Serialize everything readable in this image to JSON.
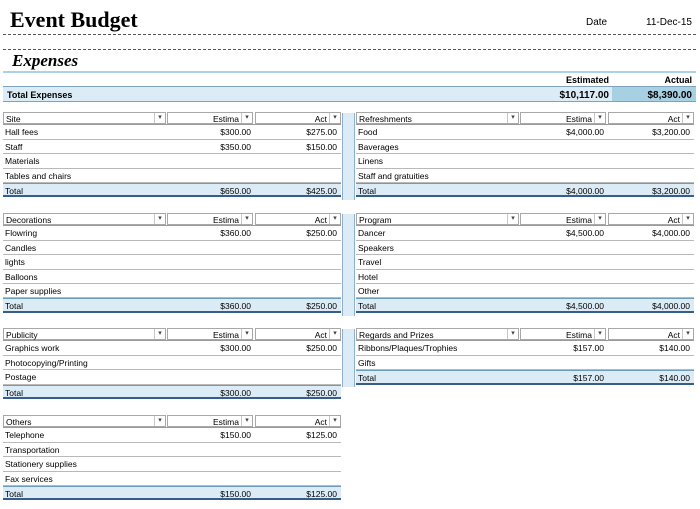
{
  "header": {
    "title": "Event Budget",
    "date_label": "Date",
    "date_value": "11-Dec-15",
    "subtitle": "Expenses"
  },
  "summary": {
    "estimated_header": "Estimated",
    "actual_header": "Actual",
    "label": "Total Expenses",
    "estimated": "$10,117.00",
    "actual": "$8,390.00"
  },
  "columns": {
    "estimated": "Estima",
    "actual": "Act"
  },
  "icons": {
    "dropdown": "chevron-down-icon"
  },
  "colors": {
    "total_row": "#dcecf6",
    "actual_highlight": "#a8d0e3",
    "border": "#385d8a"
  },
  "tables": {
    "site": {
      "name": "Site",
      "rows": [
        {
          "item": "Hall fees",
          "est": "$300.00",
          "act": "$275.00"
        },
        {
          "item": "Staff",
          "est": "$350.00",
          "act": "$150.00"
        },
        {
          "item": "Materials",
          "est": "",
          "act": ""
        },
        {
          "item": "Tables and chairs",
          "est": "",
          "act": ""
        }
      ],
      "total": {
        "label": "Total",
        "est": "$650.00",
        "act": "$425.00"
      }
    },
    "refreshments": {
      "name": "Refreshments",
      "rows": [
        {
          "item": "Food",
          "est": "$4,000.00",
          "act": "$3,200.00"
        },
        {
          "item": "Baverages",
          "est": "",
          "act": ""
        },
        {
          "item": "Linens",
          "est": "",
          "act": ""
        },
        {
          "item": "Staff and gratuities",
          "est": "",
          "act": ""
        }
      ],
      "total": {
        "label": "Total",
        "est": "$4,000.00",
        "act": "$3,200.00"
      }
    },
    "decorations": {
      "name": "Decorations",
      "rows": [
        {
          "item": "Flowring",
          "est": "$360.00",
          "act": "$250.00"
        },
        {
          "item": "Candles",
          "est": "",
          "act": ""
        },
        {
          "item": "lights",
          "est": "",
          "act": ""
        },
        {
          "item": "Balloons",
          "est": "",
          "act": ""
        },
        {
          "item": "Paper supplies",
          "est": "",
          "act": ""
        }
      ],
      "total": {
        "label": "Total",
        "est": "$360.00",
        "act": "$250.00"
      }
    },
    "program": {
      "name": "Program",
      "rows": [
        {
          "item": "Dancer",
          "est": "$4,500.00",
          "act": "$4,000.00"
        },
        {
          "item": "Speakers",
          "est": "",
          "act": ""
        },
        {
          "item": "Travel",
          "est": "",
          "act": ""
        },
        {
          "item": "Hotel",
          "est": "",
          "act": ""
        },
        {
          "item": "Other",
          "est": "",
          "act": ""
        }
      ],
      "total": {
        "label": "Total",
        "est": "$4,500.00",
        "act": "$4,000.00"
      }
    },
    "publicity": {
      "name": "Publicity",
      "rows": [
        {
          "item": "Graphics work",
          "est": "$300.00",
          "act": "$250.00"
        },
        {
          "item": "Photocopying/Printing",
          "est": "",
          "act": ""
        },
        {
          "item": "Postage",
          "est": "",
          "act": ""
        }
      ],
      "total": {
        "label": "Total",
        "est": "$300.00",
        "act": "$250.00"
      }
    },
    "regards": {
      "name": "Regards and Prizes",
      "rows": [
        {
          "item": "Ribbons/Plaques/Trophies",
          "est": "$157.00",
          "act": "$140.00"
        },
        {
          "item": "Gifts",
          "est": "",
          "act": ""
        }
      ],
      "total": {
        "label": "Total",
        "est": "$157.00",
        "act": "$140.00"
      }
    },
    "others": {
      "name": "Others",
      "rows": [
        {
          "item": "Telephone",
          "est": "$150.00",
          "act": "$125.00"
        },
        {
          "item": "Transportation",
          "est": "",
          "act": ""
        },
        {
          "item": "Stationery supplies",
          "est": "",
          "act": ""
        },
        {
          "item": "Fax services",
          "est": "",
          "act": ""
        }
      ],
      "total": {
        "label": "Total",
        "est": "$150.00",
        "act": "$125.00"
      }
    }
  }
}
